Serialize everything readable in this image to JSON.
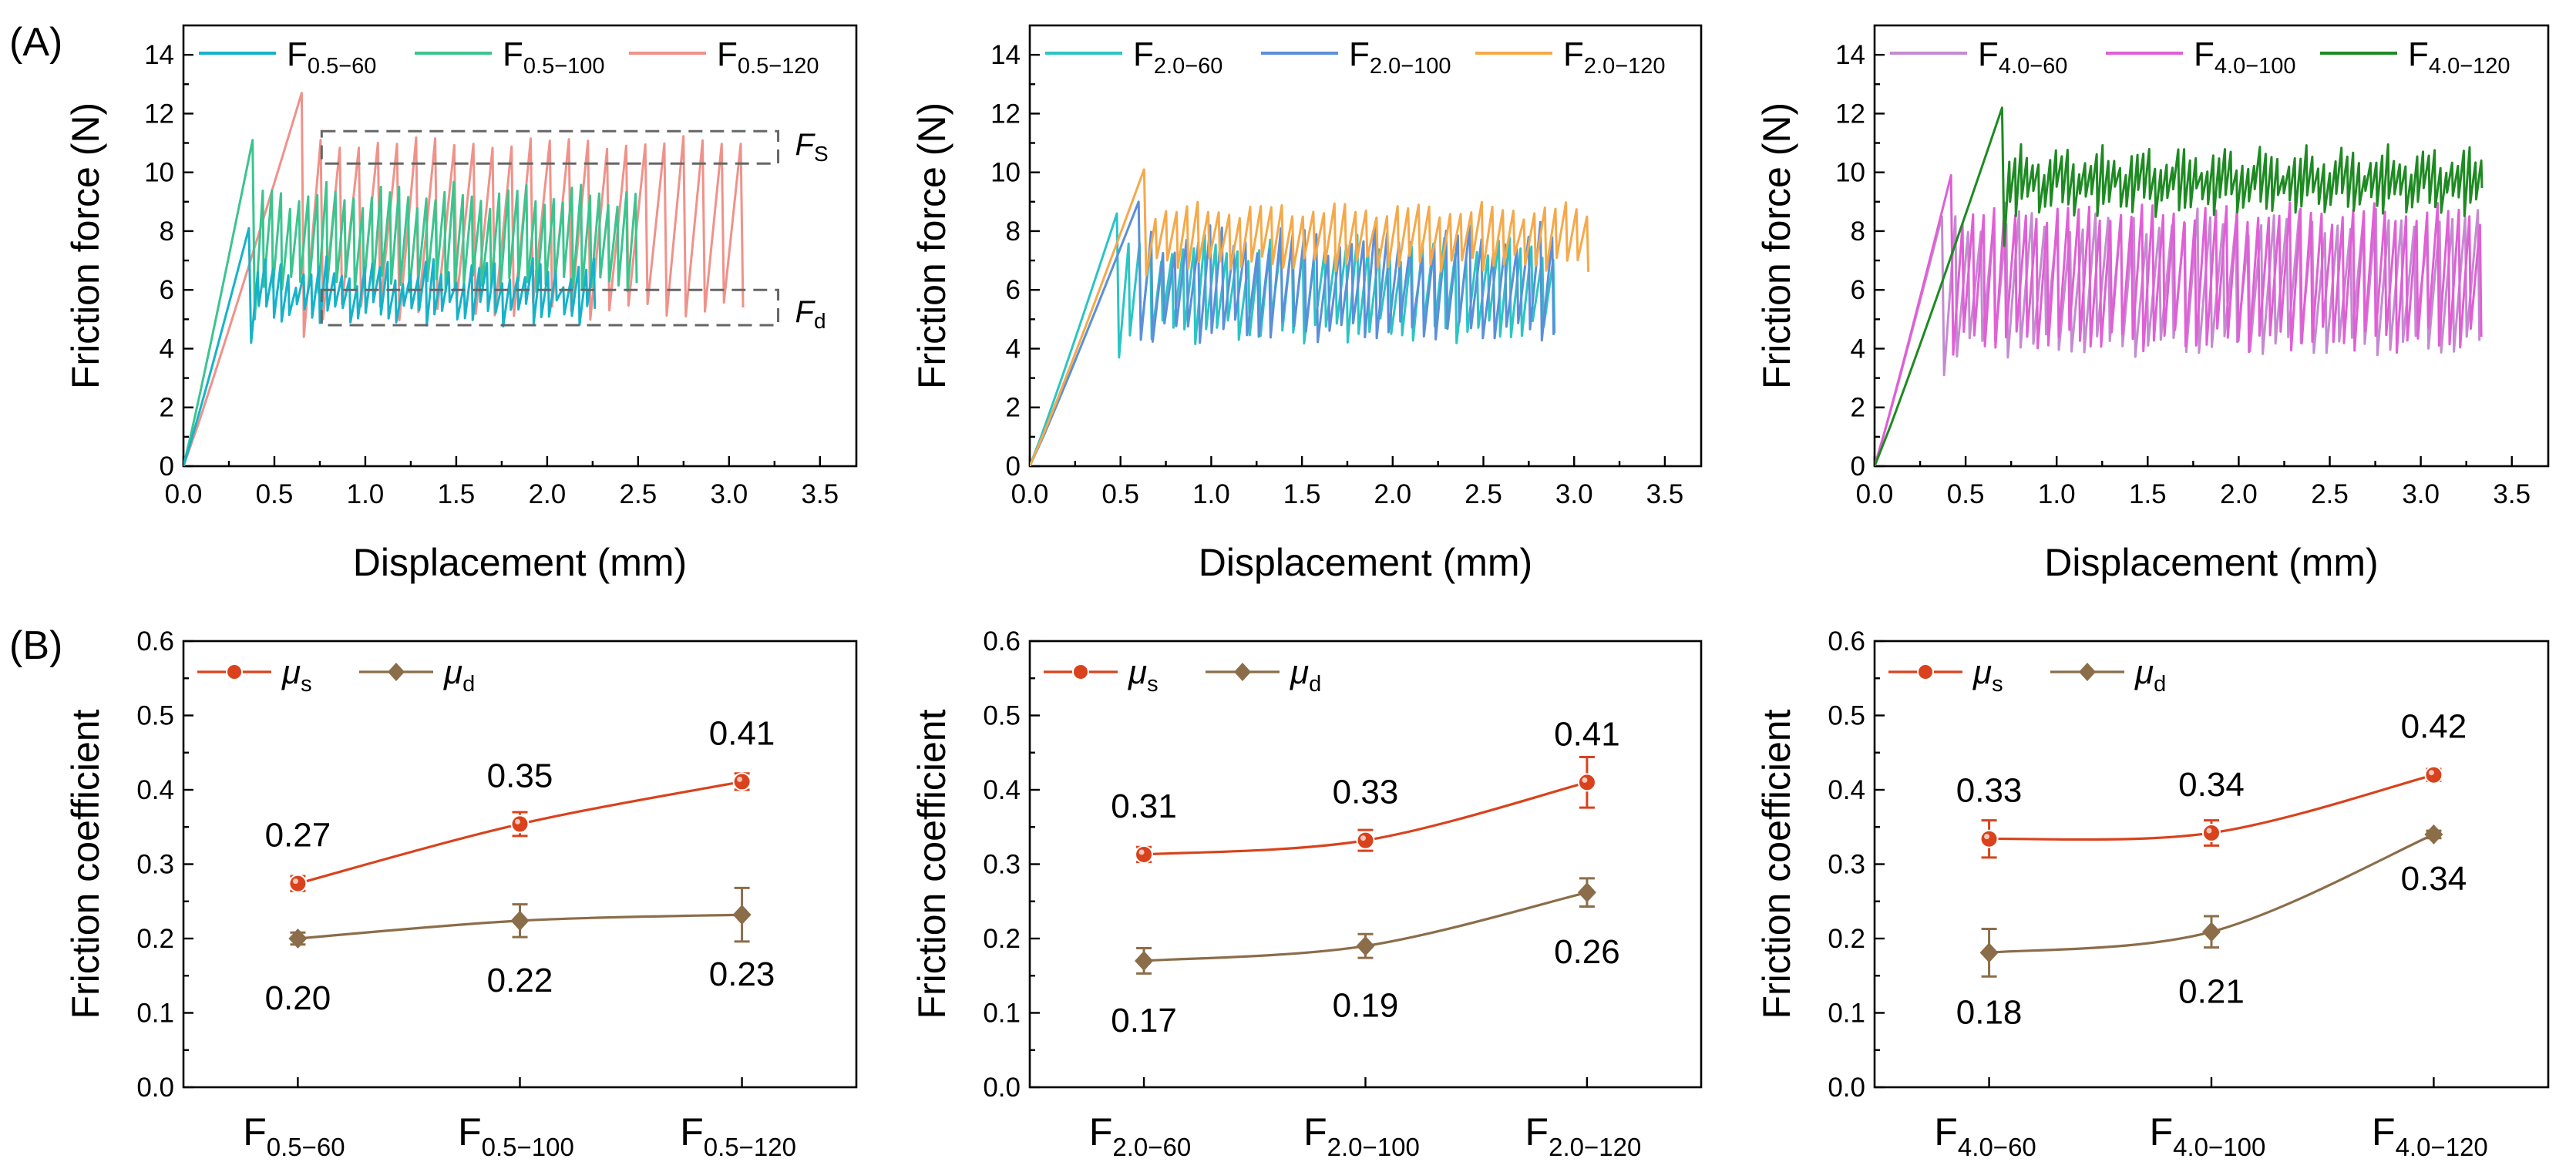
{
  "panel_labels": {
    "A": "(A)",
    "B": "(B)"
  },
  "annotations": {
    "fs": {
      "main": "F",
      "sub": "S"
    },
    "fd": {
      "main": "F",
      "sub": "d"
    }
  },
  "chart_data": [
    {
      "id": "A1",
      "type": "line",
      "xlabel": "Displacement (mm)",
      "ylabel": "Friction force (N)",
      "xlim": [
        0,
        3.7
      ],
      "ylim": [
        0,
        15
      ],
      "xticks": [
        0,
        0.5,
        1.0,
        1.5,
        2.0,
        2.5,
        3.0,
        3.5
      ],
      "xtick_labels": [
        "0.0",
        "0.5",
        "1.0",
        "1.5",
        "2.0",
        "2.5",
        "3.0",
        "3.5"
      ],
      "yticks": [
        0,
        2,
        4,
        6,
        8,
        10,
        12,
        14
      ],
      "ytick_labels": [
        "0",
        "2",
        "4",
        "6",
        "8",
        "10",
        "12",
        "14"
      ],
      "legend": "top",
      "series": [
        {
          "name_main": "F",
          "name_sub": "0.5−60",
          "color": "#17b2c9",
          "peak_x": 0.36,
          "peak_y": 8.1,
          "drop_y": 4.2,
          "end_x": 2.27,
          "hi": 6.6,
          "lo": 5.2,
          "hi_amp": 0.35,
          "lo_amp": 0.3,
          "period": 0.042
        },
        {
          "name_main": "F",
          "name_sub": "0.5−100",
          "color": "#3cc48f",
          "peak_x": 0.38,
          "peak_y": 11.1,
          "drop_y": 5.0,
          "end_x": 2.5,
          "hi": 9.2,
          "lo": 6.2,
          "hi_amp": 0.3,
          "lo_amp": 0.2,
          "period": 0.05
        },
        {
          "name_main": "F",
          "name_sub": "0.5−120",
          "color": "#f0928a",
          "peak_x": 0.65,
          "peak_y": 12.7,
          "drop_y": 4.4,
          "end_x": 3.1,
          "hi": 11.0,
          "lo": 5.3,
          "hi_amp": 0.15,
          "lo_amp": 0.25,
          "period": 0.105
        }
      ]
    },
    {
      "id": "A2",
      "type": "line",
      "xlabel": "Displacement (mm)",
      "ylabel": "Friction force (N)",
      "xlim": [
        0,
        3.7
      ],
      "ylim": [
        0,
        15
      ],
      "xticks": [
        0,
        0.5,
        1.0,
        1.5,
        2.0,
        2.5,
        3.0,
        3.5
      ],
      "xtick_labels": [
        "0.0",
        "0.5",
        "1.0",
        "1.5",
        "2.0",
        "2.5",
        "3.0",
        "3.5"
      ],
      "yticks": [
        0,
        2,
        4,
        6,
        8,
        10,
        12,
        14
      ],
      "ytick_labels": [
        "0",
        "2",
        "4",
        "6",
        "8",
        "10",
        "12",
        "14"
      ],
      "legend": "top",
      "series": [
        {
          "name_main": "F",
          "name_sub": "2.0−60",
          "color": "#2cc4c4",
          "peak_x": 0.48,
          "peak_y": 8.6,
          "drop_y": 3.7,
          "end_x": 2.93,
          "hi": 7.4,
          "lo": 4.6,
          "hi_amp": 0.3,
          "lo_amp": 0.3,
          "period": 0.06
        },
        {
          "name_main": "F",
          "name_sub": "2.0−100",
          "color": "#5b8fd9",
          "peak_x": 0.6,
          "peak_y": 9.0,
          "drop_y": 4.3,
          "end_x": 2.93,
          "hi": 7.7,
          "lo": 4.6,
          "hi_amp": 0.4,
          "lo_amp": 0.3,
          "period": 0.065
        },
        {
          "name_main": "F",
          "name_sub": "2.0−120",
          "color": "#f5a94a",
          "peak_x": 0.63,
          "peak_y": 10.1,
          "drop_y": 6.5,
          "end_x": 3.08,
          "hi": 8.7,
          "lo": 6.9,
          "hi_amp": 0.2,
          "lo_amp": 0.2,
          "period": 0.058
        }
      ]
    },
    {
      "id": "A3",
      "type": "line",
      "xlabel": "Displacement (mm)",
      "ylabel": "Friction force (N)",
      "xlim": [
        0,
        3.7
      ],
      "ylim": [
        0,
        15
      ],
      "xticks": [
        0,
        0.5,
        1.0,
        1.5,
        2.0,
        2.5,
        3.0,
        3.5
      ],
      "xtick_labels": [
        "0.0",
        "0.5",
        "1.0",
        "1.5",
        "2.0",
        "2.5",
        "3.0",
        "3.5"
      ],
      "yticks": [
        0,
        2,
        4,
        6,
        8,
        10,
        12,
        14
      ],
      "ytick_labels": [
        "0",
        "2",
        "4",
        "6",
        "8",
        "10",
        "12",
        "14"
      ],
      "legend": "top",
      "series": [
        {
          "name_main": "F",
          "name_sub": "4.0−60",
          "color": "#c48bd0",
          "peak_x": 0.37,
          "peak_y": 8.5,
          "drop_y": 3.1,
          "end_x": 3.35,
          "hi": 8.3,
          "lo": 4.1,
          "hi_amp": 0.3,
          "lo_amp": 0.3,
          "period": 0.07
        },
        {
          "name_main": "F",
          "name_sub": "4.0−100",
          "color": "#e05fd6",
          "peak_x": 0.42,
          "peak_y": 9.9,
          "drop_y": 3.8,
          "end_x": 3.35,
          "hi": 8.6,
          "lo": 4.3,
          "hi_amp": 0.25,
          "lo_amp": 0.3,
          "period": 0.058
        },
        {
          "name_main": "F",
          "name_sub": "4.0−120",
          "color": "#1e8a22",
          "peak_x": 0.7,
          "peak_y": 12.2,
          "drop_y": 7.5,
          "end_x": 3.35,
          "hi": 10.4,
          "lo": 9.0,
          "hi_amp": 0.35,
          "lo_amp": 0.35,
          "period": 0.032
        }
      ]
    },
    {
      "id": "B1",
      "type": "line",
      "ylabel": "Friction coefficient",
      "ylim": [
        0,
        0.6
      ],
      "yticks": [
        0,
        0.1,
        0.2,
        0.3,
        0.4,
        0.5,
        0.6
      ],
      "ytick_labels": [
        "0.0",
        "0.1",
        "0.2",
        "0.3",
        "0.4",
        "0.5",
        "0.6"
      ],
      "categories": [
        {
          "main": "F",
          "sub": "0.5−60"
        },
        {
          "main": "F",
          "sub": "0.5−100"
        },
        {
          "main": "F",
          "sub": "0.5−120"
        }
      ],
      "legend": "top-left",
      "series": [
        {
          "name_main": "μ",
          "name_sub": "s",
          "color": "#d9421c",
          "marker": "circle",
          "values": [
            0.274,
            0.354,
            0.411
          ],
          "errors": [
            0.01,
            0.016,
            0.011
          ],
          "labels": [
            "0.27",
            "0.35",
            "0.41"
          ],
          "label_pos": "above"
        },
        {
          "name_main": "μ",
          "name_sub": "d",
          "color": "#8b6d4a",
          "marker": "diamond",
          "values": [
            0.2,
            0.224,
            0.232
          ],
          "errors": [
            0.008,
            0.022,
            0.036
          ],
          "labels": [
            "0.20",
            "0.22",
            "0.23"
          ],
          "label_pos": "below"
        }
      ]
    },
    {
      "id": "B2",
      "type": "line",
      "ylabel": "Friction coefficient",
      "ylim": [
        0,
        0.6
      ],
      "yticks": [
        0,
        0.1,
        0.2,
        0.3,
        0.4,
        0.5,
        0.6
      ],
      "ytick_labels": [
        "0.0",
        "0.1",
        "0.2",
        "0.3",
        "0.4",
        "0.5",
        "0.6"
      ],
      "categories": [
        {
          "main": "F",
          "sub": "2.0−60"
        },
        {
          "main": "F",
          "sub": "2.0−100"
        },
        {
          "main": "F",
          "sub": "2.0−120"
        }
      ],
      "legend": "top-left",
      "series": [
        {
          "name_main": "μ",
          "name_sub": "s",
          "color": "#d9421c",
          "marker": "circle",
          "values": [
            0.313,
            0.332,
            0.41
          ],
          "errors": [
            0.01,
            0.014,
            0.034
          ],
          "labels": [
            "0.31",
            "0.33",
            "0.41"
          ],
          "label_pos": "above"
        },
        {
          "name_main": "μ",
          "name_sub": "d",
          "color": "#8b6d4a",
          "marker": "diamond",
          "values": [
            0.17,
            0.19,
            0.262
          ],
          "errors": [
            0.017,
            0.016,
            0.019
          ],
          "labels": [
            "0.17",
            "0.19",
            "0.26"
          ],
          "label_pos": "below"
        }
      ]
    },
    {
      "id": "B3",
      "type": "line",
      "ylabel": "Friction coefficient",
      "ylim": [
        0,
        0.6
      ],
      "yticks": [
        0,
        0.1,
        0.2,
        0.3,
        0.4,
        0.5,
        0.6
      ],
      "ytick_labels": [
        "0.0",
        "0.1",
        "0.2",
        "0.3",
        "0.4",
        "0.5",
        "0.6"
      ],
      "categories": [
        {
          "main": "F",
          "sub": "4.0−60"
        },
        {
          "main": "F",
          "sub": "4.0−100"
        },
        {
          "main": "F",
          "sub": "4.0−120"
        }
      ],
      "legend": "top-left",
      "series": [
        {
          "name_main": "μ",
          "name_sub": "s",
          "color": "#d9421c",
          "marker": "circle",
          "values": [
            0.334,
            0.342,
            0.42
          ],
          "errors": [
            0.025,
            0.017,
            0.008
          ],
          "labels": [
            "0.33",
            "0.34",
            "0.42"
          ],
          "label_pos": "above"
        },
        {
          "name_main": "μ",
          "name_sub": "d",
          "color": "#8b6d4a",
          "marker": "diamond",
          "values": [
            0.181,
            0.209,
            0.34
          ],
          "errors": [
            0.032,
            0.021,
            0.005
          ],
          "labels": [
            "0.18",
            "0.21",
            "0.34"
          ],
          "label_pos": "below-last-right"
        }
      ]
    }
  ]
}
